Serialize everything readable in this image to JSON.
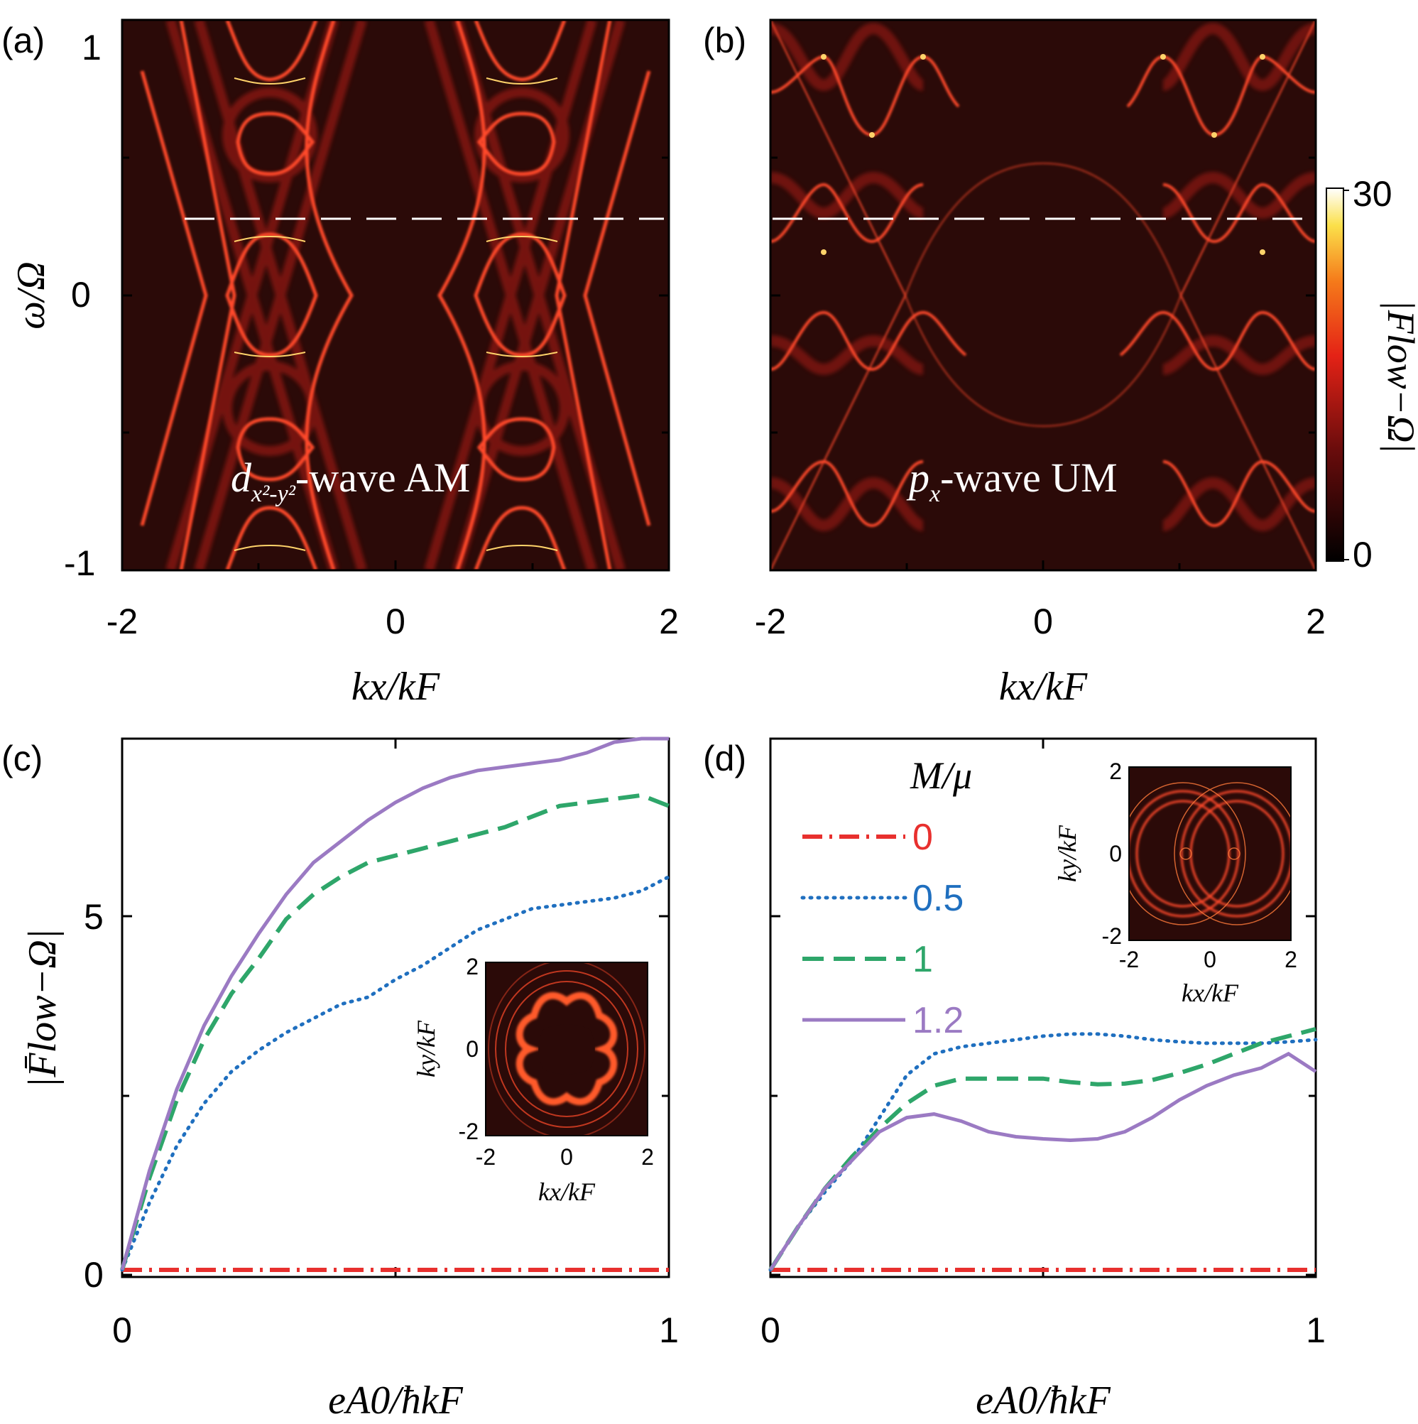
{
  "chart_data": [
    {
      "panel": "(a)",
      "type": "heatmap",
      "annotation": {
        "main": "d",
        "sub": "x²-y²",
        "rest": "-wave AM"
      },
      "xlabel": "kx/kF",
      "ylabel": "ω/Ω",
      "xlim": [
        -2,
        2
      ],
      "ylim": [
        -1,
        1
      ],
      "xticks": [
        "-2",
        "0",
        "2"
      ],
      "yticks": [
        "1",
        "0",
        "-1"
      ],
      "dashed_line_y": 0.28,
      "colormap": "hot"
    },
    {
      "panel": "(b)",
      "type": "heatmap",
      "annotation": {
        "main": "p",
        "sub": "x",
        "rest": "-wave UM"
      },
      "xlabel": "kx/kF",
      "xlim": [
        -2,
        2
      ],
      "ylim": [
        -1,
        1
      ],
      "xticks": [
        "-2",
        "0",
        "2"
      ],
      "dashed_line_y": 0.28,
      "colorbar": {
        "label": "|Flow−Ω|",
        "min": "0",
        "max": "30"
      }
    },
    {
      "panel": "(c)",
      "type": "line",
      "xlabel": "eA0/ħkF",
      "ylabel": "|F̄low−Ω|",
      "xlim": [
        0,
        1
      ],
      "ylim": [
        -0.1,
        7.5
      ],
      "xticks": [
        "0",
        "1"
      ],
      "yticks": [
        "0",
        "5"
      ],
      "x": [
        0,
        0.05,
        0.1,
        0.15,
        0.2,
        0.25,
        0.3,
        0.35,
        0.4,
        0.45,
        0.5,
        0.55,
        0.6,
        0.65,
        0.7,
        0.75,
        0.8,
        0.85,
        0.9,
        0.95,
        1.0
      ],
      "series": [
        {
          "name": "0",
          "color": "#e8302e",
          "values": [
            0,
            0,
            0,
            0,
            0,
            0,
            0,
            0,
            0,
            0,
            0,
            0,
            0,
            0,
            0,
            0,
            0,
            0,
            0,
            0,
            0
          ]
        },
        {
          "name": "0.5",
          "color": "#1f6fbf",
          "values": [
            0,
            0.95,
            1.75,
            2.35,
            2.8,
            3.1,
            3.35,
            3.55,
            3.75,
            3.85,
            4.1,
            4.3,
            4.55,
            4.8,
            4.95,
            5.1,
            5.15,
            5.2,
            5.25,
            5.35,
            5.55
          ]
        },
        {
          "name": "1",
          "color": "#2ea66a",
          "values": [
            0,
            1.3,
            2.4,
            3.25,
            3.9,
            4.4,
            4.95,
            5.3,
            5.55,
            5.75,
            5.85,
            5.95,
            6.05,
            6.15,
            6.25,
            6.4,
            6.55,
            6.6,
            6.65,
            6.7,
            6.55
          ]
        },
        {
          "name": "1.2",
          "color": "#9b7ac3",
          "values": [
            0,
            1.4,
            2.55,
            3.45,
            4.15,
            4.75,
            5.3,
            5.75,
            6.05,
            6.35,
            6.6,
            6.8,
            6.95,
            7.05,
            7.1,
            7.15,
            7.2,
            7.3,
            7.45,
            7.5,
            7.5
          ]
        }
      ]
    },
    {
      "panel": "(d)",
      "type": "line",
      "xlabel": "eA0/ħkF",
      "xlim": [
        0,
        1
      ],
      "ylim": [
        -0.1,
        7.5
      ],
      "xticks": [
        "0",
        "1"
      ],
      "legend_title": "M/μ",
      "x": [
        0,
        0.05,
        0.1,
        0.15,
        0.2,
        0.25,
        0.3,
        0.35,
        0.4,
        0.45,
        0.5,
        0.55,
        0.6,
        0.65,
        0.7,
        0.75,
        0.8,
        0.85,
        0.9,
        0.95,
        1.0
      ],
      "series": [
        {
          "name": "0",
          "color": "#e8302e",
          "values": [
            0,
            0,
            0,
            0,
            0,
            0,
            0,
            0,
            0,
            0,
            0,
            0,
            0,
            0,
            0,
            0,
            0,
            0,
            0,
            0,
            0
          ]
        },
        {
          "name": "0.5",
          "color": "#1f6fbf",
          "values": [
            0,
            0.6,
            1.1,
            1.55,
            2.15,
            2.75,
            3.05,
            3.15,
            3.2,
            3.25,
            3.3,
            3.33,
            3.33,
            3.3,
            3.25,
            3.22,
            3.2,
            3.2,
            3.2,
            3.22,
            3.25
          ]
        },
        {
          "name": "1",
          "color": "#2ea66a",
          "values": [
            0,
            0.6,
            1.15,
            1.6,
            2.0,
            2.35,
            2.6,
            2.7,
            2.7,
            2.7,
            2.7,
            2.65,
            2.62,
            2.63,
            2.68,
            2.78,
            2.9,
            3.05,
            3.2,
            3.3,
            3.4
          ]
        },
        {
          "name": "1.2",
          "color": "#9b7ac3",
          "values": [
            0,
            0.6,
            1.15,
            1.55,
            1.95,
            2.15,
            2.2,
            2.1,
            1.95,
            1.88,
            1.85,
            1.83,
            1.85,
            1.95,
            2.15,
            2.4,
            2.6,
            2.75,
            2.85,
            3.05,
            2.8
          ]
        }
      ]
    }
  ],
  "insets": [
    {
      "panel": "(c)",
      "xlabel": "kx/kF",
      "ylabel": "ky/kF",
      "xticks": [
        "-2",
        "0",
        "2"
      ],
      "yticks": [
        "2",
        "0",
        "-2"
      ]
    },
    {
      "panel": "(d)",
      "xlabel": "kx/kF",
      "ylabel": "ky/kF",
      "xticks": [
        "-2",
        "0",
        "2"
      ],
      "yticks": [
        "2",
        "0",
        "-2"
      ]
    }
  ]
}
